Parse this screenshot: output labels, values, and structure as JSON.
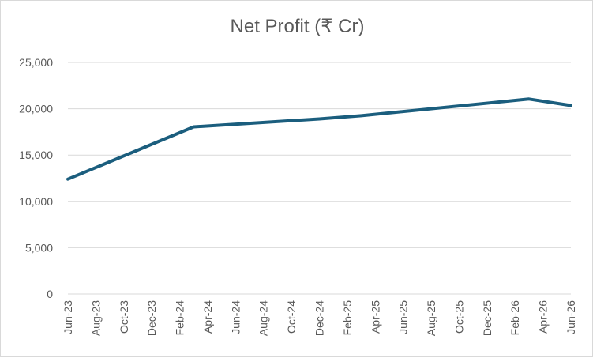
{
  "chart_data": {
    "type": "line",
    "title": "Net Profit (₹ Cr)",
    "xlabel": "",
    "ylabel": "",
    "ylim": [
      0,
      25000
    ],
    "y_ticks": [
      0,
      5000,
      10000,
      15000,
      20000,
      25000
    ],
    "y_tick_labels": [
      "0",
      "5,000",
      "10,000",
      "15,000",
      "20,000",
      "25,000"
    ],
    "x_tick_labels": [
      "Jun-23",
      "Aug-23",
      "Oct-23",
      "Dec-23",
      "Feb-24",
      "Apr-24",
      "Jun-24",
      "Aug-24",
      "Oct-24",
      "Dec-24",
      "Feb-25",
      "Apr-25",
      "Jun-25",
      "Aug-25",
      "Oct-25",
      "Dec-25",
      "Feb-26",
      "Apr-26",
      "Jun-26"
    ],
    "grid": true,
    "legend": "none",
    "line_color": "#1b5e7e",
    "series": [
      {
        "points": [
          {
            "x": "Jun-23",
            "y": 12400
          },
          {
            "x": "Mar-24",
            "y": 18050
          },
          {
            "x": "Dec-24",
            "y": 18900
          },
          {
            "x": "Mar-25",
            "y": 19250
          },
          {
            "x": "Mar-26",
            "y": 21050
          },
          {
            "x": "Jun-26",
            "y": 20350
          }
        ]
      }
    ]
  }
}
